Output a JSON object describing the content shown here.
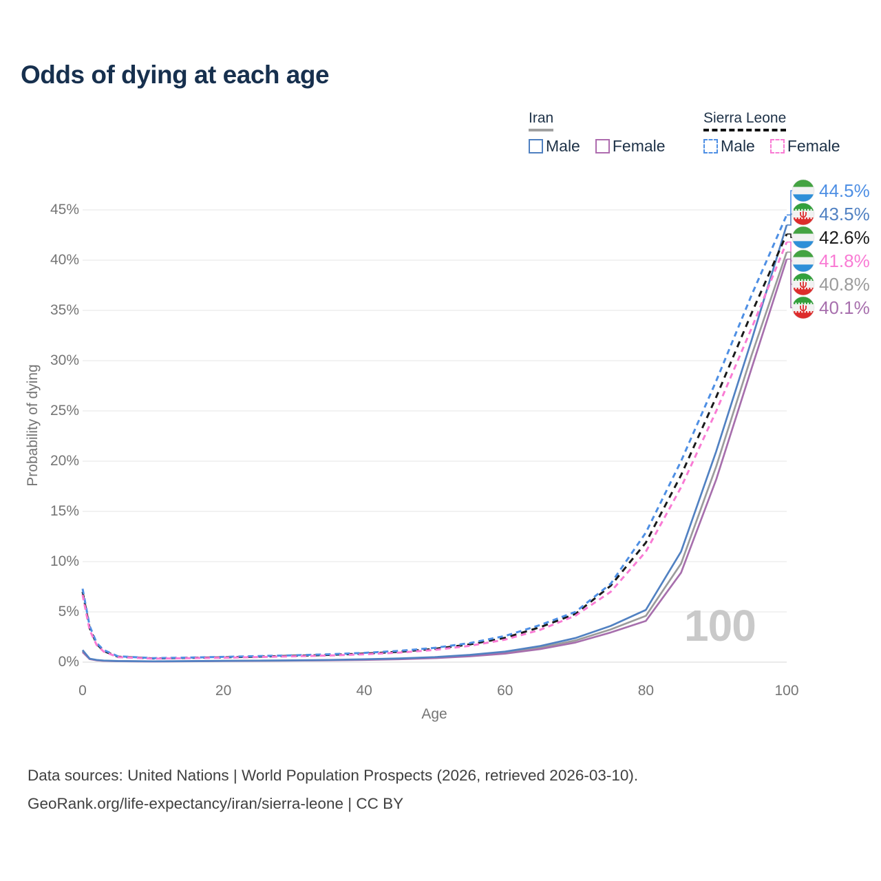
{
  "title": "Odds of dying at each age",
  "watermark": "100",
  "legend": {
    "iran": {
      "label": "Iran",
      "male": "Male",
      "female": "Female"
    },
    "sierra_leone": {
      "label": "Sierra Leone",
      "male": "Male",
      "female": "Female"
    }
  },
  "axes": {
    "xlabel": "Age",
    "ylabel": "Probability of dying"
  },
  "footer": {
    "line1": "Data sources: United Nations | World Population Prospects (2026, retrieved 2026-03-10).",
    "line2": "GeoRank.org/life-expectancy/iran/sierra-leone | CC BY"
  },
  "end_labels": [
    {
      "text": "44.5%",
      "value": 44.5,
      "color": "#4e8fe4",
      "flag": "sierra-leone",
      "series": "Sierra Leone Male"
    },
    {
      "text": "43.5%",
      "value": 43.5,
      "color": "#5181c2",
      "flag": "iran",
      "series": "Iran Male"
    },
    {
      "text": "42.6%",
      "value": 42.6,
      "color": "#1a1a1a",
      "flag": "sierra-leone",
      "series": "Sierra Leone Both sexes"
    },
    {
      "text": "41.8%",
      "value": 41.8,
      "color": "#f97bd4",
      "flag": "sierra-leone",
      "series": "Sierra Leone Female"
    },
    {
      "text": "40.8%",
      "value": 40.8,
      "color": "#9b9b9b",
      "flag": "iran",
      "series": "Iran Both sexes"
    },
    {
      "text": "40.1%",
      "value": 40.1,
      "color": "#a76fad",
      "flag": "iran",
      "series": "Iran Female"
    }
  ],
  "chart_data": {
    "type": "line",
    "title": "Odds of dying at each age",
    "xlabel": "Age",
    "ylabel": "Probability of dying",
    "xlim": [
      0,
      100
    ],
    "ylim": [
      0,
      47
    ],
    "grid": "horizontal",
    "legend_position": "top-right",
    "x": [
      0,
      1,
      2,
      3,
      5,
      10,
      15,
      20,
      25,
      30,
      35,
      40,
      45,
      50,
      55,
      60,
      65,
      70,
      75,
      80,
      85,
      90,
      95,
      100
    ],
    "xticks": [
      0,
      20,
      40,
      60,
      80,
      100
    ],
    "xtick_labels": [
      "0",
      "20",
      "40",
      "60",
      "80",
      "100"
    ],
    "yticks": [
      0,
      5,
      10,
      15,
      20,
      25,
      30,
      35,
      40,
      45
    ],
    "ytick_labels": [
      "0%",
      "5%",
      "10%",
      "15%",
      "20%",
      "25%",
      "30%",
      "35%",
      "40%",
      "45%"
    ],
    "unit": "percent",
    "series": [
      {
        "name": "Iran Both sexes",
        "country": "Iran",
        "sex": "Both sexes",
        "style": "solid",
        "color": "#9b9b9b",
        "dash": null,
        "end_value": 40.8,
        "values": [
          1.1,
          0.32,
          0.2,
          0.14,
          0.1,
          0.07,
          0.09,
          0.12,
          0.14,
          0.16,
          0.2,
          0.25,
          0.33,
          0.45,
          0.65,
          0.95,
          1.45,
          2.15,
          3.25,
          4.6,
          9.8,
          19.5,
          30.5,
          40.8
        ]
      },
      {
        "name": "Iran Female",
        "country": "Iran",
        "sex": "Female",
        "style": "solid",
        "color": "#a76fad",
        "dash": null,
        "end_value": 40.1,
        "values": [
          1.0,
          0.3,
          0.18,
          0.13,
          0.09,
          0.065,
          0.08,
          0.11,
          0.13,
          0.15,
          0.18,
          0.22,
          0.29,
          0.4,
          0.58,
          0.85,
          1.3,
          1.95,
          2.95,
          4.1,
          8.9,
          18.2,
          29.2,
          40.1
        ]
      },
      {
        "name": "Iran Male",
        "country": "Iran",
        "sex": "Male",
        "style": "solid",
        "color": "#5181c2",
        "dash": null,
        "end_value": 43.5,
        "values": [
          1.2,
          0.35,
          0.22,
          0.16,
          0.11,
          0.08,
          0.1,
          0.13,
          0.15,
          0.18,
          0.22,
          0.28,
          0.37,
          0.5,
          0.72,
          1.05,
          1.6,
          2.4,
          3.6,
          5.2,
          11.0,
          21.0,
          32.0,
          43.5
        ]
      },
      {
        "name": "Sierra Leone Both sexes",
        "country": "Sierra Leone",
        "sex": "Both sexes",
        "style": "dashed",
        "color": "#1a1a1a",
        "dash": "9 7",
        "end_value": 42.6,
        "values": [
          7.0,
          3.4,
          1.8,
          1.1,
          0.54,
          0.37,
          0.42,
          0.48,
          0.55,
          0.63,
          0.72,
          0.85,
          1.03,
          1.32,
          1.76,
          2.42,
          3.48,
          4.8,
          7.6,
          11.9,
          18.6,
          26.4,
          34.7,
          42.6
        ]
      },
      {
        "name": "Sierra Leone Male",
        "country": "Sierra Leone",
        "sex": "Male",
        "style": "dashed",
        "color": "#4e8fe4",
        "dash": "8 6",
        "end_value": 44.5,
        "values": [
          7.3,
          3.6,
          1.9,
          1.2,
          0.58,
          0.4,
          0.45,
          0.52,
          0.6,
          0.68,
          0.78,
          0.92,
          1.12,
          1.42,
          1.9,
          2.6,
          3.7,
          5.0,
          7.8,
          12.9,
          20.0,
          28.0,
          36.5,
          44.5
        ]
      },
      {
        "name": "Sierra Leone Female",
        "country": "Sierra Leone",
        "sex": "Female",
        "style": "dashed",
        "color": "#f97bd4",
        "dash": "8 6",
        "end_value": 41.8,
        "values": [
          6.7,
          3.2,
          1.7,
          1.05,
          0.5,
          0.35,
          0.39,
          0.44,
          0.51,
          0.58,
          0.66,
          0.78,
          0.95,
          1.21,
          1.62,
          2.24,
          3.22,
          4.62,
          7.0,
          11.0,
          17.4,
          25.0,
          33.2,
          41.8
        ]
      }
    ],
    "flag_colors": {
      "sierra_leone_green": "#44a342",
      "sierra_leone_white": "#f2f2f2",
      "sierra_leone_blue": "#2e8fd8",
      "iran_green": "#33a03c",
      "iran_white": "#f2f2f2",
      "iran_red": "#dd2c2c"
    }
  }
}
